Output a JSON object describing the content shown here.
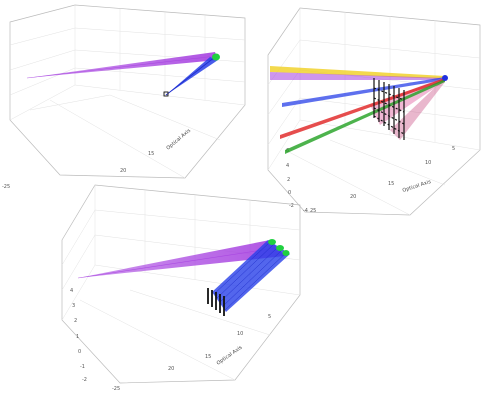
{
  "panels": [
    {
      "id": "top-left",
      "optical_axis_label": "Optical Axis",
      "optical_ticks": [
        "20",
        "15"
      ],
      "vertical_ticks": [
        "-25"
      ],
      "beam_colors": [
        "#a640e0",
        "#2840e8",
        "#20d040"
      ]
    },
    {
      "id": "top-right",
      "optical_axis_label": "Optical Axis",
      "optical_ticks": [
        "25",
        "20",
        "15",
        "10",
        "5"
      ],
      "vertical_ticks": [
        "6",
        "4",
        "2",
        "0",
        "-2",
        "-4"
      ],
      "beam_colors": [
        "#f0d020",
        "#a640e0",
        "#2840e8",
        "#e02020",
        "#20a020",
        "#e060a0"
      ]
    },
    {
      "id": "bottom",
      "optical_axis_label": "Optical Axis",
      "optical_ticks": [
        "-25",
        "20",
        "15",
        "10",
        "5"
      ],
      "vertical_ticks": [
        "4",
        "3",
        "2",
        "1",
        "0",
        "-1",
        "-2"
      ],
      "beam_colors": [
        "#a640e0",
        "#2840e8",
        "#20d040"
      ]
    }
  ],
  "colors": {
    "violet": "#a640e0",
    "blue": "#2840e8",
    "green": "#20d040",
    "yellow": "#f0d020",
    "red": "#e02020",
    "darkgreen": "#20a020",
    "pink": "#e060a0",
    "grating": "#111111"
  }
}
